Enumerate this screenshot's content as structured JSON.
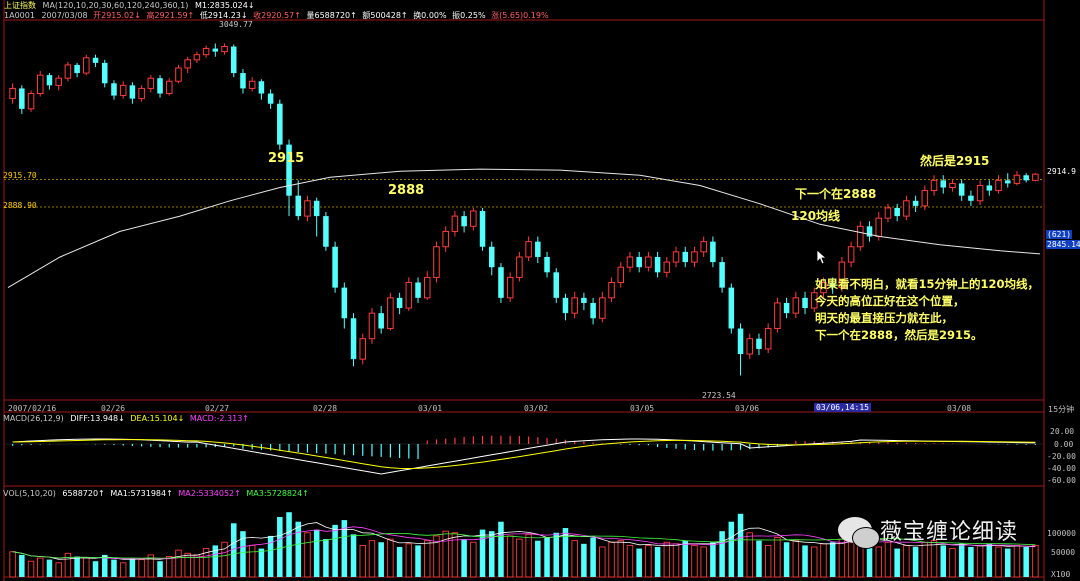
{
  "header": {
    "title": "上证指数",
    "ma_label": "MA(120,10,20,30,60,120,240,360,1)",
    "m1": "M1:2835.024↓",
    "code": "1A0001",
    "date": "2007/03/08",
    "open": "开2915.02↓",
    "high": "高2921.59↑",
    "low": "低2914.23↓",
    "close": "收2920.57↑",
    "volume": "量6588720↑",
    "amount": "额500428↑",
    "turnover": "换0.00%",
    "amplitude": "振0.25%",
    "change": "涨(5.65)0.19%"
  },
  "price_axis": {
    "left_2915": "2915.70",
    "left_2888": "2888.90",
    "right_current": "2914.9",
    "right_ma_count": "(621)",
    "right_ma_value": "2845.14"
  },
  "annotations": {
    "high_label": "3049.77",
    "low_label": "2723.54",
    "a2915": "2915",
    "a2888": "2888",
    "next2888": "下一个在2888",
    "ma120": "120均线",
    "then2915": "然后是2915",
    "note_lines": [
      "如果看不明白，就看15分钟上的120均线，",
      "今天的高位正好在这个位置，",
      "明天的最直接压力就在此，",
      "下一个在2888，然后是2915。"
    ]
  },
  "date_axis": {
    "labels": [
      "2007/02/16",
      "02/26",
      "02/27",
      "02/28",
      "03/01",
      "03/02",
      "03/05",
      "03/06",
      "03/06,14:15",
      "03/08"
    ],
    "period": "15分钟"
  },
  "macd": {
    "label": "MACD(26,12,9)",
    "diff": "DIFF:13.948↓",
    "dea": "DEA:15.104↓",
    "macd": "MACD:-2.313↑",
    "ticks": [
      "20.00",
      "0.00",
      "-20.00",
      "-40.00",
      "-60.00"
    ]
  },
  "vol": {
    "label": "VOL(5,10,20)",
    "value": "6588720↑",
    "ma1": "MA1:5731984↑",
    "ma2": "MA2:5334052↑",
    "ma3": "MA3:5728824↑",
    "ticks": [
      "100000",
      "50000",
      "X100"
    ]
  },
  "watermark": {
    "text": "薇宝缠论细读"
  },
  "colors": {
    "up": "#ff3b3b",
    "down": "#54ffff",
    "ma120": "#e8e8e8",
    "annotation": "#ffff66",
    "dashed_level": "#c8a000",
    "macd_diff": "#ffffff",
    "macd_dea": "#ffff00"
  },
  "chart_data": {
    "type": "candlestick",
    "period": "15分钟",
    "levels": [
      2915.7,
      2888.9
    ],
    "high": 3049.77,
    "low": 2723.54,
    "candles": [
      [
        2995,
        3005,
        2990,
        3010
      ],
      [
        3005,
        2985,
        2980,
        3008
      ],
      [
        2985,
        3000,
        2982,
        3003
      ],
      [
        3000,
        3018,
        2997,
        3022
      ],
      [
        3018,
        3008,
        3004,
        3020
      ],
      [
        3008,
        3015,
        3003,
        3018
      ],
      [
        3015,
        3028,
        3012,
        3031
      ],
      [
        3028,
        3020,
        3016,
        3030
      ],
      [
        3020,
        3035,
        3018,
        3038
      ],
      [
        3035,
        3030,
        3026,
        3038
      ],
      [
        3030,
        3010,
        3006,
        3033
      ],
      [
        3010,
        2998,
        2994,
        3013
      ],
      [
        2998,
        3008,
        2995,
        3012
      ],
      [
        3008,
        2995,
        2990,
        3011
      ],
      [
        2995,
        3005,
        2992,
        3008
      ],
      [
        3005,
        3015,
        3001,
        3018
      ],
      [
        3015,
        3000,
        2996,
        3018
      ],
      [
        3000,
        3012,
        2998,
        3015
      ],
      [
        3012,
        3025,
        3010,
        3028
      ],
      [
        3025,
        3033,
        3020,
        3036
      ],
      [
        3033,
        3038,
        3030,
        3041
      ],
      [
        3038,
        3044,
        3035,
        3047
      ],
      [
        3044,
        3041,
        3036,
        3049
      ],
      [
        3041,
        3046,
        3038,
        3049
      ],
      [
        3046,
        3020,
        3016,
        3048
      ],
      [
        3020,
        3005,
        3000,
        3024
      ],
      [
        3005,
        3012,
        3002,
        3016
      ],
      [
        3012,
        3000,
        2994,
        3014
      ],
      [
        3000,
        2990,
        2985,
        3004
      ],
      [
        2990,
        2950,
        2945,
        2994
      ],
      [
        2950,
        2900,
        2880,
        2955
      ],
      [
        2900,
        2880,
        2876,
        2915
      ],
      [
        2880,
        2895,
        2875,
        2900
      ],
      [
        2895,
        2880,
        2860,
        2898
      ],
      [
        2880,
        2850,
        2846,
        2884
      ],
      [
        2850,
        2810,
        2805,
        2855
      ],
      [
        2810,
        2780,
        2770,
        2815
      ],
      [
        2780,
        2740,
        2733,
        2785
      ],
      [
        2740,
        2760,
        2735,
        2765
      ],
      [
        2760,
        2785,
        2755,
        2790
      ],
      [
        2785,
        2770,
        2765,
        2792
      ],
      [
        2770,
        2800,
        2768,
        2805
      ],
      [
        2800,
        2790,
        2784,
        2805
      ],
      [
        2790,
        2815,
        2787,
        2820
      ],
      [
        2815,
        2800,
        2795,
        2820
      ],
      [
        2800,
        2820,
        2798,
        2826
      ],
      [
        2820,
        2850,
        2815,
        2855
      ],
      [
        2850,
        2865,
        2845,
        2870
      ],
      [
        2865,
        2880,
        2860,
        2885
      ],
      [
        2880,
        2870,
        2864,
        2885
      ],
      [
        2870,
        2885,
        2866,
        2888
      ],
      [
        2885,
        2850,
        2846,
        2888
      ],
      [
        2850,
        2830,
        2822,
        2855
      ],
      [
        2830,
        2800,
        2795,
        2834
      ],
      [
        2800,
        2820,
        2796,
        2825
      ],
      [
        2820,
        2840,
        2816,
        2845
      ],
      [
        2840,
        2855,
        2836,
        2860
      ],
      [
        2855,
        2840,
        2834,
        2860
      ],
      [
        2840,
        2825,
        2820,
        2845
      ],
      [
        2825,
        2800,
        2795,
        2829
      ],
      [
        2800,
        2785,
        2778,
        2804
      ],
      [
        2785,
        2800,
        2780,
        2806
      ],
      [
        2800,
        2795,
        2788,
        2805
      ],
      [
        2795,
        2780,
        2774,
        2800
      ],
      [
        2780,
        2800,
        2776,
        2806
      ],
      [
        2800,
        2815,
        2796,
        2820
      ],
      [
        2815,
        2830,
        2810,
        2835
      ],
      [
        2830,
        2840,
        2825,
        2845
      ],
      [
        2840,
        2830,
        2825,
        2845
      ],
      [
        2830,
        2840,
        2826,
        2845
      ],
      [
        2840,
        2825,
        2820,
        2845
      ],
      [
        2825,
        2835,
        2820,
        2840
      ],
      [
        2835,
        2845,
        2830,
        2850
      ],
      [
        2845,
        2835,
        2830,
        2850
      ],
      [
        2835,
        2845,
        2830,
        2850
      ],
      [
        2845,
        2855,
        2840,
        2860
      ],
      [
        2855,
        2835,
        2830,
        2860
      ],
      [
        2835,
        2810,
        2805,
        2840
      ],
      [
        2810,
        2770,
        2765,
        2814
      ],
      [
        2770,
        2745,
        2724,
        2775
      ],
      [
        2745,
        2760,
        2740,
        2765
      ],
      [
        2760,
        2750,
        2744,
        2765
      ],
      [
        2750,
        2770,
        2746,
        2775
      ],
      [
        2770,
        2795,
        2766,
        2800
      ],
      [
        2795,
        2785,
        2780,
        2800
      ],
      [
        2785,
        2800,
        2780,
        2806
      ],
      [
        2800,
        2790,
        2784,
        2806
      ],
      [
        2790,
        2805,
        2786,
        2810
      ],
      [
        2805,
        2815,
        2800,
        2820
      ],
      [
        2815,
        2810,
        2804,
        2820
      ],
      [
        2810,
        2835,
        2806,
        2840
      ],
      [
        2835,
        2850,
        2830,
        2855
      ],
      [
        2850,
        2870,
        2846,
        2875
      ],
      [
        2870,
        2860,
        2855,
        2875
      ],
      [
        2860,
        2878,
        2856,
        2884
      ],
      [
        2878,
        2888,
        2874,
        2892
      ],
      [
        2888,
        2880,
        2875,
        2892
      ],
      [
        2880,
        2895,
        2876,
        2900
      ],
      [
        2895,
        2890,
        2884,
        2900
      ],
      [
        2890,
        2905,
        2886,
        2910
      ],
      [
        2905,
        2915,
        2900,
        2920
      ],
      [
        2915,
        2908,
        2902,
        2920
      ],
      [
        2908,
        2912,
        2904,
        2916
      ],
      [
        2912,
        2900,
        2895,
        2916
      ],
      [
        2900,
        2895,
        2890,
        2905
      ],
      [
        2895,
        2910,
        2891,
        2915
      ],
      [
        2910,
        2905,
        2900,
        2915
      ],
      [
        2905,
        2915,
        2902,
        2920
      ],
      [
        2915,
        2912,
        2908,
        2922
      ],
      [
        2912,
        2920,
        2910,
        2924
      ],
      [
        2920,
        2915,
        2913,
        2922
      ],
      [
        2915,
        2921,
        2914,
        2922
      ]
    ],
    "volumes": [
      32,
      28,
      20,
      24,
      22,
      18,
      30,
      26,
      24,
      20,
      28,
      22,
      18,
      24,
      22,
      28,
      20,
      26,
      34,
      30,
      28,
      36,
      40,
      44,
      68,
      58,
      40,
      36,
      52,
      76,
      82,
      70,
      56,
      60,
      48,
      66,
      72,
      54,
      40,
      46,
      44,
      48,
      38,
      42,
      40,
      46,
      52,
      58,
      56,
      48,
      44,
      60,
      58,
      70,
      52,
      48,
      54,
      46,
      50,
      56,
      62,
      46,
      42,
      50,
      38,
      44,
      46,
      40,
      36,
      40,
      38,
      44,
      42,
      46,
      40,
      38,
      44,
      58,
      70,
      80,
      56,
      46,
      40,
      50,
      44,
      46,
      40,
      38,
      42,
      44,
      48,
      52,
      56,
      42,
      38,
      44,
      36,
      40,
      38,
      44,
      46,
      40,
      36,
      42,
      38,
      40,
      42,
      38,
      36,
      40,
      38,
      40
    ]
  }
}
